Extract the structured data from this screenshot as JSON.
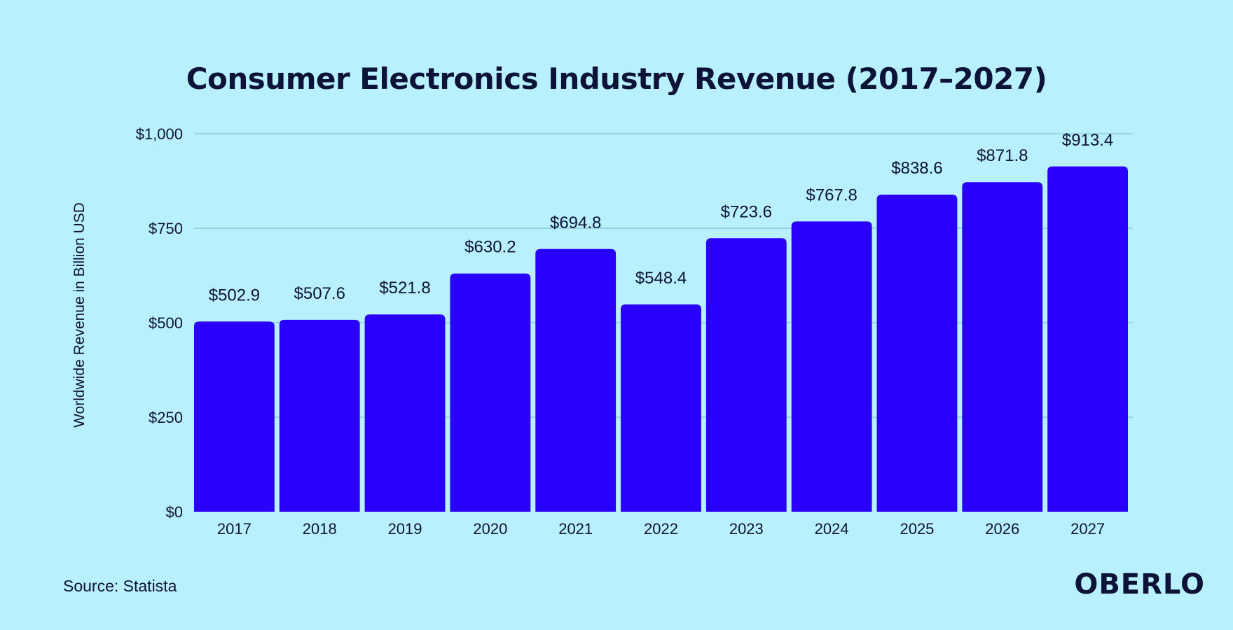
{
  "background_color": "#b8f0fd",
  "bar_color": "#2a00fd",
  "text_color": "#0d1238",
  "grid_color": "#7fc4d4",
  "source_text": "Source: Statista",
  "logo_text": "OBERLO",
  "chart_data": {
    "type": "bar",
    "title": "Consumer Electronics Industry Revenue (2017–2027)",
    "xlabel": "",
    "ylabel": "Worldwide Revenue in Billion USD",
    "categories": [
      "2017",
      "2018",
      "2019",
      "2020",
      "2021",
      "2022",
      "2023",
      "2024",
      "2025",
      "2026",
      "2027"
    ],
    "values": [
      502.9,
      507.6,
      521.8,
      630.2,
      694.8,
      548.4,
      723.6,
      767.8,
      838.6,
      871.8,
      913.4
    ],
    "value_labels": [
      "$502.9",
      "$507.6",
      "$521.8",
      "$630.2",
      "$694.8",
      "$548.4",
      "$723.6",
      "$767.8",
      "$838.6",
      "$871.8",
      "$913.4"
    ],
    "ylim": [
      0,
      1000
    ],
    "yticks": [
      0,
      250,
      500,
      750,
      1000
    ],
    "ytick_labels": [
      "$0",
      "$250",
      "$500",
      "$750",
      "$1,000"
    ],
    "grid": true,
    "legend": false
  }
}
